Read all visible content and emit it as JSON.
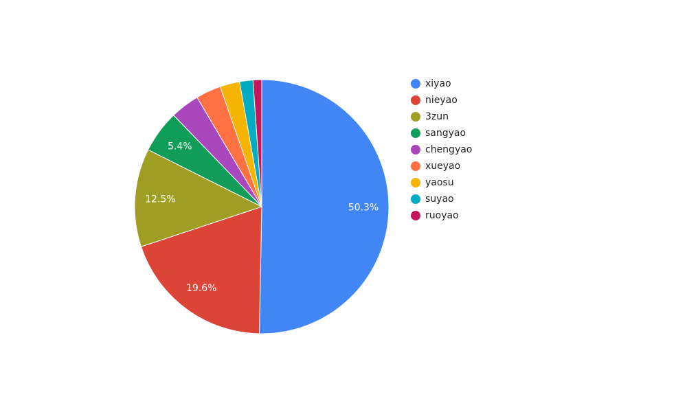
{
  "chart_data": {
    "type": "pie",
    "categories": [
      "xiyao",
      "nieyao",
      "3zun",
      "sangyao",
      "chengyao",
      "xueyao",
      "yaosu",
      "suyao",
      "ruoyao"
    ],
    "values": [
      50.3,
      19.6,
      12.5,
      5.4,
      3.7,
      3.2,
      2.5,
      1.7,
      1.1
    ],
    "value_labels": [
      "50.3%",
      "19.6%",
      "12.5%",
      "5.4%",
      null,
      null,
      null,
      null,
      null
    ],
    "colors": [
      "#4285f4",
      "#db4437",
      "#9e9d24",
      "#0f9d58",
      "#ab47bc",
      "#ff7043",
      "#f4b400",
      "#00acc1",
      "#c2185b"
    ],
    "legend": "right"
  }
}
